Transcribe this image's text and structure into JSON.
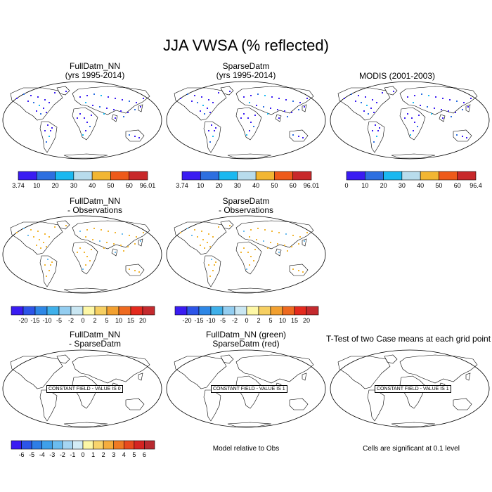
{
  "main_title": "JJA VWSA (% reflected)",
  "panels": [
    {
      "id": "p1",
      "title": "FullDatm_NN\n(yrs 1995-2014)"
    },
    {
      "id": "p2",
      "title": "SparseDatm\n(yrs 1995-2014)"
    },
    {
      "id": "p3",
      "title": "MODIS (2001-2003)"
    },
    {
      "id": "p4",
      "title": "FullDatm_NN\n- Observations"
    },
    {
      "id": "p5",
      "title": "SparseDatm\n- Observations"
    },
    {
      "id": "p7",
      "title": "FullDatm_NN\n- SparseDatm",
      "constant_label": "CONSTANT FIELD - VALUE IS 0"
    },
    {
      "id": "p8",
      "title": "FullDatm_NN (green)\nSparseDatm (red)",
      "constant_label": "CONSTANT FIELD - VALUE IS 1"
    },
    {
      "id": "p9",
      "title": "T-Test of two Case means at each grid point",
      "constant_label": "CONSTANT FIELD - VALUE IS 1"
    }
  ],
  "colorbars": {
    "cb1": {
      "labels": [
        "3.74",
        "10",
        "20",
        "30",
        "40",
        "50",
        "60",
        "96.01"
      ],
      "colors": [
        "#3a1cf2",
        "#2d6fe0",
        "#1ab8f0",
        "#b8dcec",
        "#f2b632",
        "#ee5a1a",
        "#c8282a"
      ]
    },
    "cb2": {
      "labels": [
        "3.74",
        "10",
        "20",
        "30",
        "40",
        "50",
        "60",
        "96.01"
      ],
      "colors": [
        "#3a1cf2",
        "#2d6fe0",
        "#1ab8f0",
        "#b8dcec",
        "#f2b632",
        "#ee5a1a",
        "#c8282a"
      ]
    },
    "cb3": {
      "labels": [
        "0",
        "10",
        "20",
        "30",
        "40",
        "50",
        "60",
        "96.4"
      ],
      "colors": [
        "#3a1cf2",
        "#2d6fe0",
        "#1ab8f0",
        "#b8dcec",
        "#f2b632",
        "#ee5a1a",
        "#c8282a"
      ]
    },
    "cb4": {
      "labels": [
        "-20",
        "-15",
        "-10",
        "-5",
        "-2",
        "0",
        "2",
        "5",
        "10",
        "15",
        "20"
      ],
      "colors": [
        "#3a1cf2",
        "#2d55e8",
        "#2e87e6",
        "#3fb0ea",
        "#93cdf0",
        "#c9e6f2",
        "#fdf7a6",
        "#f6cf62",
        "#f2a030",
        "#ee6a20",
        "#e42a1e",
        "#c42a2e"
      ]
    },
    "cb5": {
      "labels": [
        "-20",
        "-15",
        "-10",
        "-5",
        "-2",
        "0",
        "2",
        "5",
        "10",
        "15",
        "20"
      ],
      "colors": [
        "#3a1cf2",
        "#2d55e8",
        "#2e87e6",
        "#3fb0ea",
        "#93cdf0",
        "#c9e6f2",
        "#fdf7a6",
        "#f6cf62",
        "#f2a030",
        "#ee6a20",
        "#e42a1e",
        "#c42a2e"
      ]
    },
    "cb7": {
      "labels": [
        "-6",
        "-5",
        "-4",
        "-3",
        "-2",
        "-1",
        "0",
        "1",
        "2",
        "3",
        "4",
        "5",
        "6"
      ],
      "colors": [
        "#3a1cf2",
        "#2d55e8",
        "#2e7ee6",
        "#3fa0ea",
        "#6bbcef",
        "#a5d5f2",
        "#d3ecf6",
        "#fdf7a6",
        "#f8d46c",
        "#f4ad3e",
        "#ef7a24",
        "#e84a1e",
        "#d42422",
        "#b82a30"
      ]
    }
  },
  "notes": {
    "model_relative": "Model relative to Obs",
    "significance": "Cells are significant at 0.1 level"
  },
  "map_style": {
    "land_outline": "#000000",
    "ocean": "#ffffff",
    "anomaly_point": "#f2b632",
    "diff_point": "#6bbcef"
  }
}
